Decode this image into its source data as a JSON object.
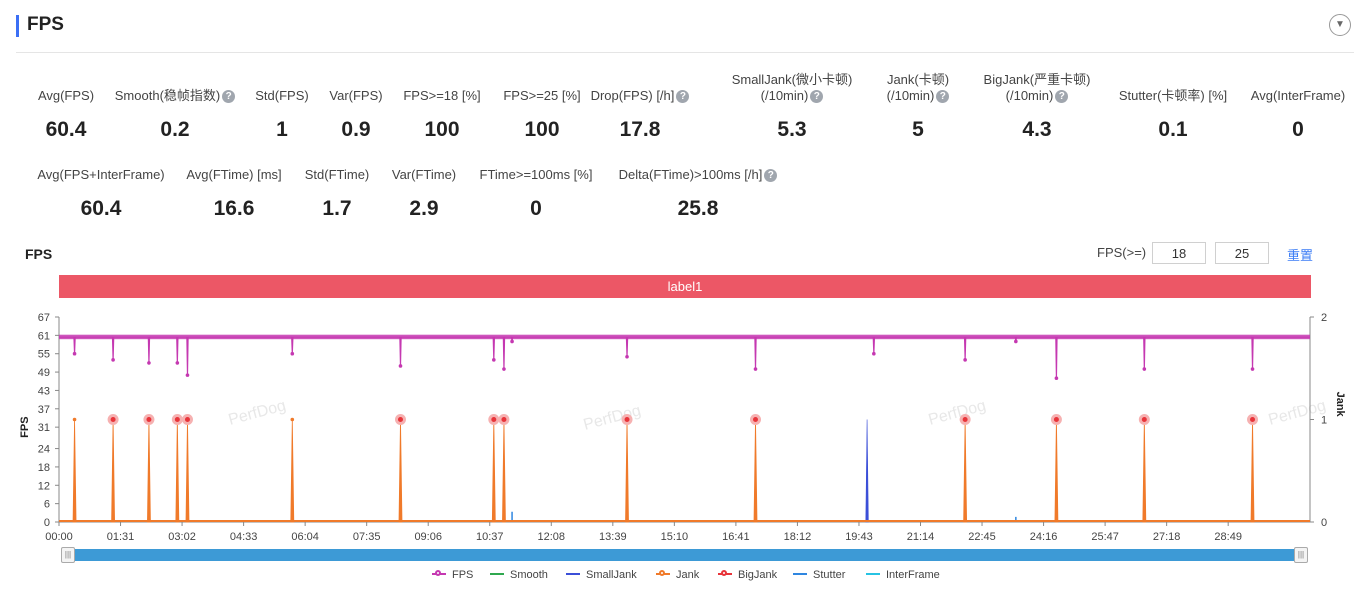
{
  "section": {
    "title": "FPS",
    "collapse_icon": "chevron-down-icon"
  },
  "stats_row1": [
    {
      "label": "Avg(FPS)",
      "value": "60.4"
    },
    {
      "label": "Smooth(稳帧指数)",
      "value": "0.2",
      "help": true
    },
    {
      "label": "Std(FPS)",
      "value": "1"
    },
    {
      "label": "Var(FPS)",
      "value": "0.9"
    },
    {
      "label": "FPS>=18 [%]",
      "value": "100"
    },
    {
      "label": "FPS>=25 [%]",
      "value": "100"
    },
    {
      "label": "Drop(FPS) [/h]",
      "value": "17.8",
      "help": true
    },
    {
      "label": "SmallJank(微小卡顿)",
      "label2": "(/10min)",
      "value": "5.3",
      "help": true
    },
    {
      "label": "Jank(卡顿)",
      "label2": "(/10min)",
      "value": "5",
      "help": true
    },
    {
      "label": "BigJank(严重卡顿)",
      "label2": "(/10min)",
      "value": "4.3",
      "help": true
    },
    {
      "label": "Stutter(卡顿率) [%]",
      "value": "0.1"
    },
    {
      "label": "Avg(InterFrame)",
      "value": "0"
    }
  ],
  "stats_row2": [
    {
      "label": "Avg(FPS+InterFrame)",
      "value": "60.4"
    },
    {
      "label": "Avg(FTime) [ms]",
      "value": "16.6"
    },
    {
      "label": "Std(FTime)",
      "value": "1.7"
    },
    {
      "label": "Var(FTime)",
      "value": "2.9"
    },
    {
      "label": "FTime>=100ms [%]",
      "value": "0"
    },
    {
      "label": "Delta(FTime)>100ms [/h]",
      "value": "25.8",
      "help": true
    }
  ],
  "chart_header": {
    "title": "FPS",
    "filter_label": "FPS(>=)",
    "threshold_low": "18",
    "threshold_high": "25",
    "reset_label": "重置"
  },
  "label_bar": {
    "text": "label1",
    "color": "#ec5766"
  },
  "legend": [
    {
      "name": "FPS",
      "color": "#c538b1",
      "style": "dot"
    },
    {
      "name": "Smooth",
      "color": "#2fa84f",
      "style": "line"
    },
    {
      "name": "SmallJank",
      "color": "#3b4fd8",
      "style": "line"
    },
    {
      "name": "Jank",
      "color": "#f07a2a",
      "style": "dot"
    },
    {
      "name": "BigJank",
      "color": "#e8343a",
      "style": "dot"
    },
    {
      "name": "Stutter",
      "color": "#2f86e0",
      "style": "line"
    },
    {
      "name": "InterFrame",
      "color": "#27c3e3",
      "style": "line"
    }
  ],
  "chart_data": {
    "type": "line",
    "title": "",
    "ylabel": "FPS",
    "y2label": "Jank",
    "x_ticks": [
      "00:00",
      "01:31",
      "03:02",
      "04:33",
      "06:04",
      "07:35",
      "09:06",
      "10:37",
      "12:08",
      "13:39",
      "15:10",
      "16:41",
      "18:12",
      "19:43",
      "21:14",
      "22:45",
      "24:16",
      "25:47",
      "27:18",
      "28:49"
    ],
    "x_range_seconds": [
      0,
      1850
    ],
    "y_ticks": [
      0,
      6,
      12,
      18,
      24,
      31,
      37,
      43,
      49,
      55,
      61,
      67
    ],
    "ylim": [
      0,
      67
    ],
    "y2_ticks": [
      0,
      1,
      2
    ],
    "y2lim": [
      0,
      2
    ],
    "fps_baseline": 60.4,
    "fps_dips": [
      {
        "t": 23,
        "fps": 55
      },
      {
        "t": 80,
        "fps": 53
      },
      {
        "t": 133,
        "fps": 52
      },
      {
        "t": 175,
        "fps": 52
      },
      {
        "t": 190,
        "fps": 48
      },
      {
        "t": 345,
        "fps": 55
      },
      {
        "t": 505,
        "fps": 51
      },
      {
        "t": 643,
        "fps": 53
      },
      {
        "t": 658,
        "fps": 50
      },
      {
        "t": 670,
        "fps": 59
      },
      {
        "t": 840,
        "fps": 54
      },
      {
        "t": 1030,
        "fps": 50
      },
      {
        "t": 1205,
        "fps": 55
      },
      {
        "t": 1340,
        "fps": 53
      },
      {
        "t": 1415,
        "fps": 59
      },
      {
        "t": 1475,
        "fps": 47
      },
      {
        "t": 1605,
        "fps": 50
      },
      {
        "t": 1765,
        "fps": 50
      }
    ],
    "jank_events": [
      {
        "t": 23,
        "jank": 1,
        "bigjank": 0
      },
      {
        "t": 80,
        "jank": 1,
        "bigjank": 1
      },
      {
        "t": 133,
        "jank": 1,
        "bigjank": 1
      },
      {
        "t": 175,
        "jank": 1,
        "bigjank": 1
      },
      {
        "t": 190,
        "jank": 1,
        "bigjank": 1
      },
      {
        "t": 345,
        "jank": 1,
        "bigjank": 0
      },
      {
        "t": 505,
        "jank": 1,
        "bigjank": 1
      },
      {
        "t": 643,
        "jank": 1,
        "bigjank": 1
      },
      {
        "t": 658,
        "jank": 1,
        "bigjank": 1
      },
      {
        "t": 840,
        "jank": 1,
        "bigjank": 1
      },
      {
        "t": 1030,
        "jank": 1,
        "bigjank": 1
      },
      {
        "t": 1340,
        "jank": 1,
        "bigjank": 1
      },
      {
        "t": 1475,
        "jank": 1,
        "bigjank": 1
      },
      {
        "t": 1605,
        "jank": 1,
        "bigjank": 1
      },
      {
        "t": 1765,
        "jank": 1,
        "bigjank": 1
      }
    ],
    "smalljank_events": [
      {
        "t": 1195,
        "value": 1
      }
    ],
    "stutter_events": [
      {
        "t": 670,
        "value": 0.1
      },
      {
        "t": 1415,
        "value": 0.05
      }
    ],
    "watermark": "PerfDog"
  }
}
